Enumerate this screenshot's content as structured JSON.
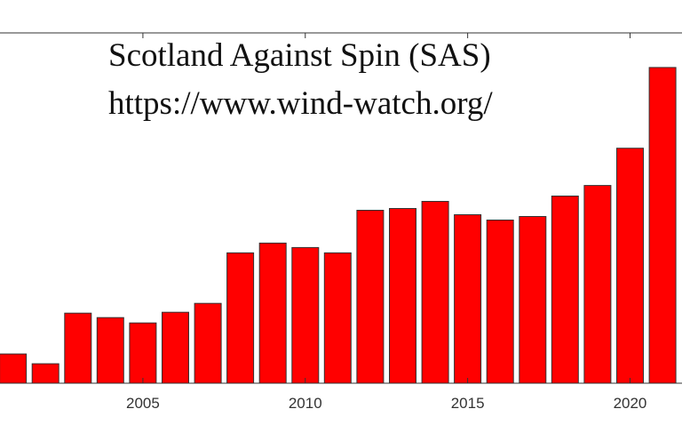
{
  "annotations": {
    "line1": "Scotland Against Spin (SAS)",
    "line2": "https://www.wind-watch.org/"
  },
  "chart_data": {
    "type": "bar",
    "title": "",
    "xlabel": "",
    "ylabel": "",
    "x": [
      2001,
      2002,
      2003,
      2004,
      2005,
      2006,
      2007,
      2008,
      2009,
      2010,
      2011,
      2012,
      2013,
      2014,
      2015,
      2016,
      2017,
      2018,
      2019,
      2020,
      2021
    ],
    "values": [
      33,
      22,
      79,
      74,
      68,
      80,
      90,
      147,
      158,
      153,
      147,
      195,
      197,
      205,
      190,
      184,
      188,
      211,
      223,
      265,
      356
    ],
    "xticks": [
      "2005",
      "2010",
      "2015",
      "2020"
    ],
    "xtick_values": [
      2005,
      2010,
      2015,
      2020
    ],
    "xlim": [
      2000.6,
      2021.6
    ],
    "ylim": [
      0,
      395
    ],
    "grid": false,
    "colors": {
      "bar": "#ff0000",
      "edge": "#333333",
      "axis": "#333333"
    }
  }
}
